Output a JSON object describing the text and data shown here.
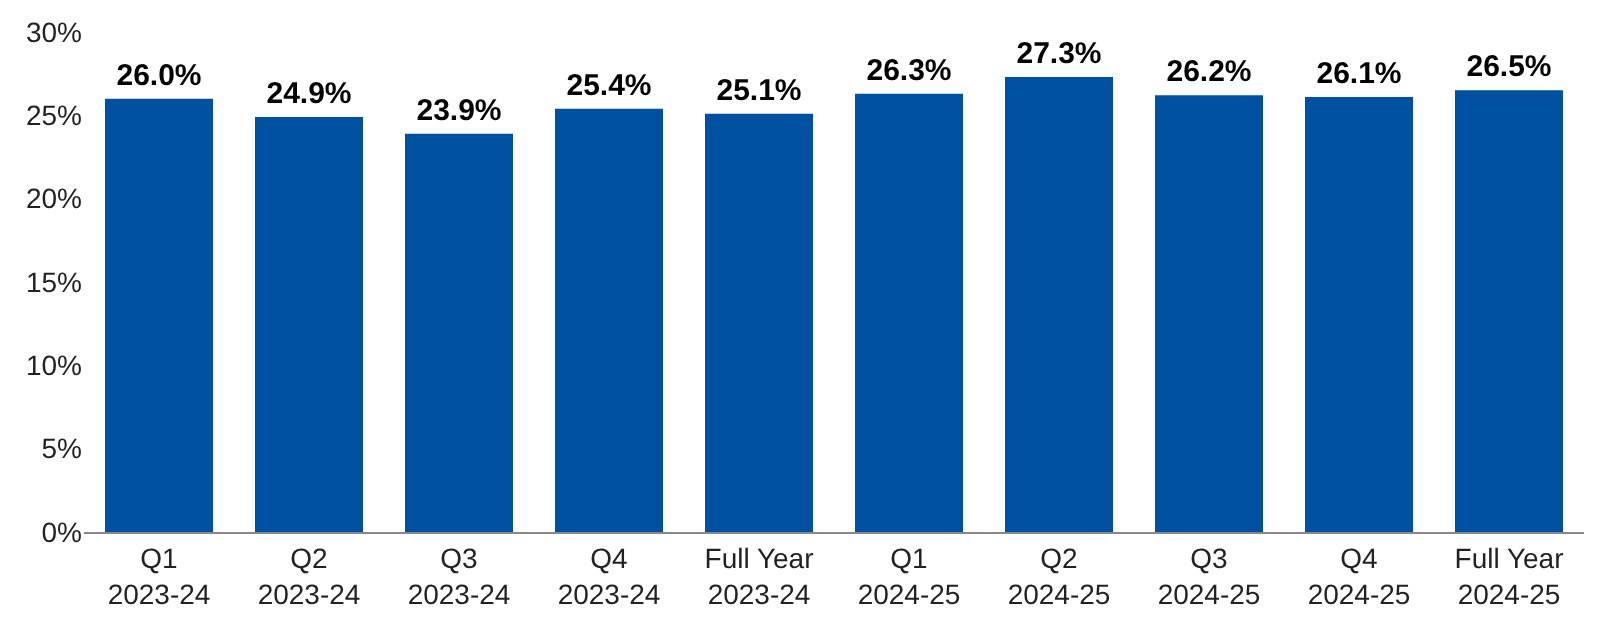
{
  "chart_data": {
    "type": "bar",
    "categories": [
      "Q1\n2023-24",
      "Q2\n2023-24",
      "Q3\n2023-24",
      "Q4\n2023-24",
      "Full Year\n2023-24",
      "Q1\n2024-25",
      "Q2\n2024-25",
      "Q3\n2024-25",
      "Q4\n2024-25",
      "Full Year\n2024-25"
    ],
    "values": [
      26.0,
      24.9,
      23.9,
      25.4,
      25.1,
      26.3,
      27.3,
      26.2,
      26.1,
      26.5
    ],
    "value_labels": [
      "26.0%",
      "24.9%",
      "23.9%",
      "25.4%",
      "25.1%",
      "26.3%",
      "27.3%",
      "26.2%",
      "26.1%",
      "26.5%"
    ],
    "color": "#0050a2",
    "ylim": [
      0,
      30
    ],
    "yticks": [
      {
        "value": 0,
        "label": "0%"
      },
      {
        "value": 5,
        "label": "5%"
      },
      {
        "value": 10,
        "label": "10%"
      },
      {
        "value": 15,
        "label": "15%"
      },
      {
        "value": 20,
        "label": "20%"
      },
      {
        "value": 25,
        "label": "25%"
      },
      {
        "value": 30,
        "label": "30%"
      }
    ],
    "grid": false
  }
}
